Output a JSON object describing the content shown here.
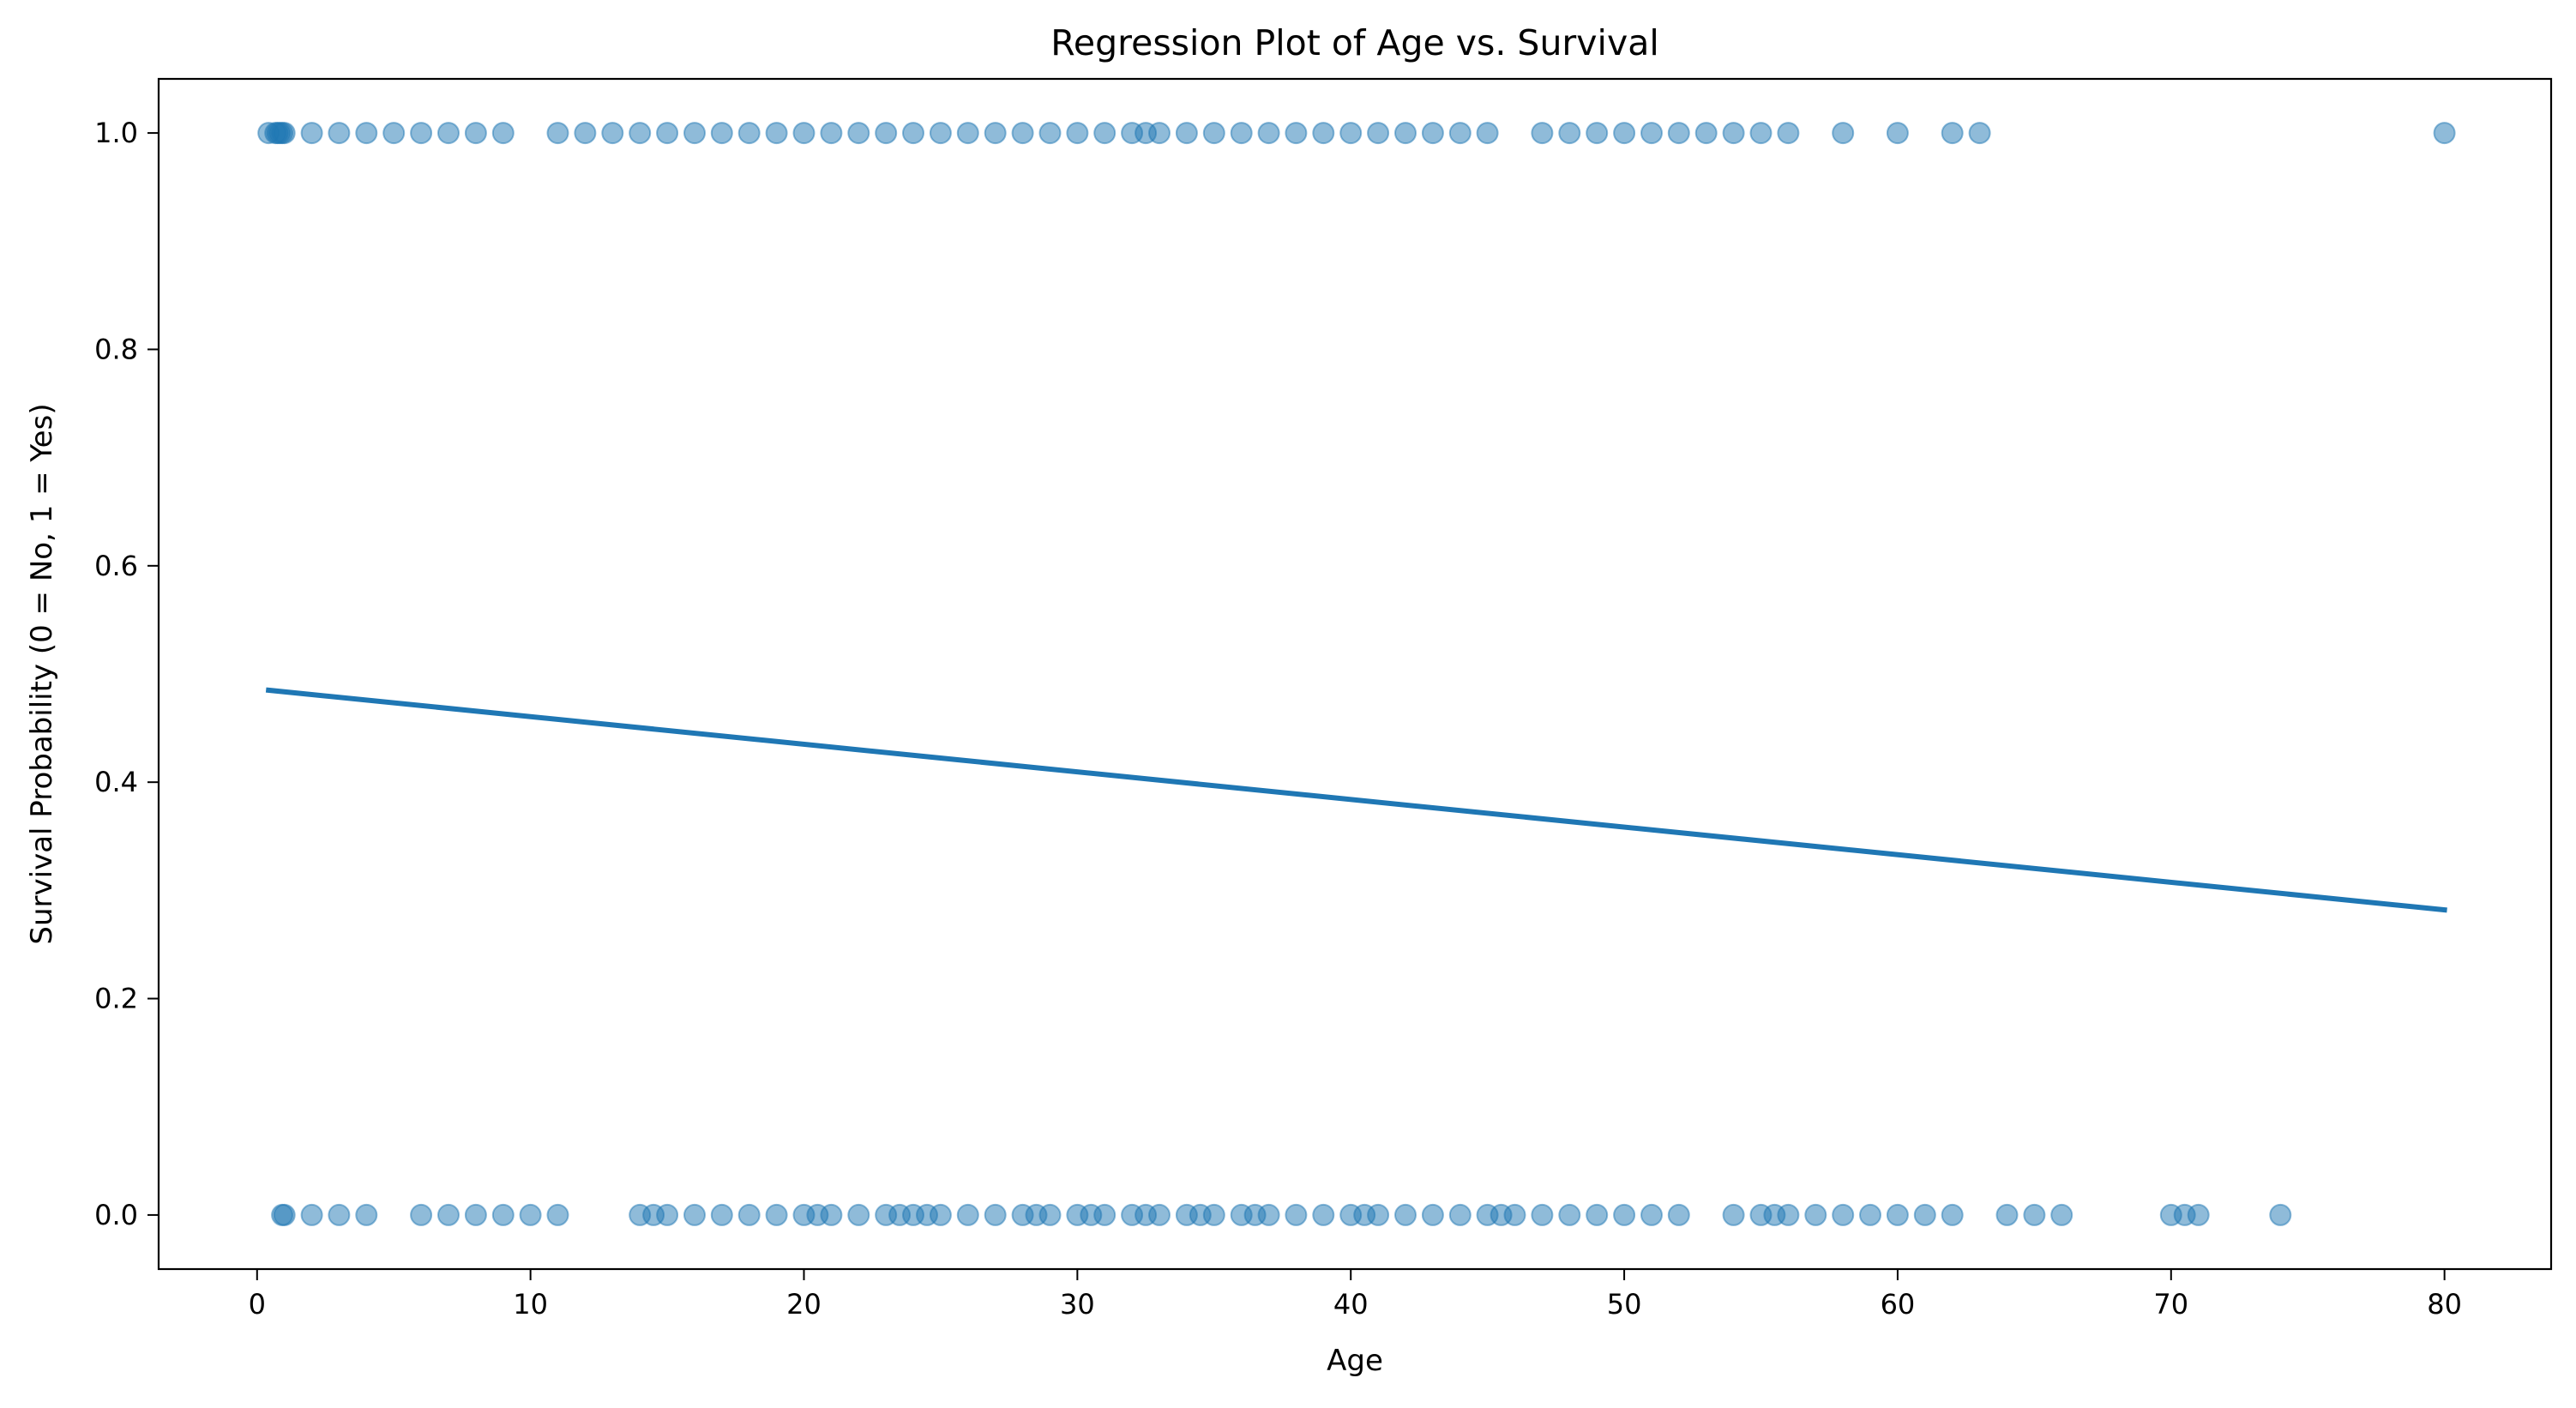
{
  "chart_data": {
    "type": "scatter",
    "title": "Regression Plot of Age vs. Survival",
    "xlabel": "Age",
    "ylabel": "Survival Probability (0 = No, 1 = Yes)",
    "xlim": [
      -3.6,
      83.9
    ],
    "ylim": [
      -0.05,
      1.05
    ],
    "xticks": [
      0,
      10,
      20,
      30,
      40,
      50,
      60,
      70,
      80
    ],
    "xtick_labels": [
      "0",
      "10",
      "20",
      "30",
      "40",
      "50",
      "60",
      "70",
      "80"
    ],
    "yticks": [
      0.0,
      0.2,
      0.4,
      0.6,
      0.8,
      1.0
    ],
    "ytick_labels": [
      "0.0",
      "0.2",
      "0.4",
      "0.6",
      "0.8",
      "1.0"
    ],
    "grid": false,
    "legend": "none",
    "point_color": "#1f77b4",
    "point_alpha": 0.5,
    "series": [
      {
        "values": [
          [
            0.42,
            1
          ],
          [
            0.67,
            1
          ],
          [
            0.75,
            1
          ],
          [
            0.83,
            1
          ],
          [
            0.92,
            1
          ],
          [
            1,
            1
          ],
          [
            2,
            1
          ],
          [
            3,
            1
          ],
          [
            4,
            1
          ],
          [
            5,
            1
          ],
          [
            6,
            1
          ],
          [
            7,
            1
          ],
          [
            8,
            1
          ],
          [
            9,
            1
          ],
          [
            11,
            1
          ],
          [
            12,
            1
          ],
          [
            13,
            1
          ],
          [
            14,
            1
          ],
          [
            15,
            1
          ],
          [
            16,
            1
          ],
          [
            17,
            1
          ],
          [
            18,
            1
          ],
          [
            19,
            1
          ],
          [
            20,
            1
          ],
          [
            21,
            1
          ],
          [
            22,
            1
          ],
          [
            23,
            1
          ],
          [
            24,
            1
          ],
          [
            25,
            1
          ],
          [
            26,
            1
          ],
          [
            27,
            1
          ],
          [
            28,
            1
          ],
          [
            29,
            1
          ],
          [
            30,
            1
          ],
          [
            31,
            1
          ],
          [
            32,
            1
          ],
          [
            32.5,
            1
          ],
          [
            33,
            1
          ],
          [
            34,
            1
          ],
          [
            35,
            1
          ],
          [
            36,
            1
          ],
          [
            37,
            1
          ],
          [
            38,
            1
          ],
          [
            39,
            1
          ],
          [
            40,
            1
          ],
          [
            41,
            1
          ],
          [
            42,
            1
          ],
          [
            43,
            1
          ],
          [
            44,
            1
          ],
          [
            45,
            1
          ],
          [
            47,
            1
          ],
          [
            48,
            1
          ],
          [
            49,
            1
          ],
          [
            50,
            1
          ],
          [
            51,
            1
          ],
          [
            52,
            1
          ],
          [
            53,
            1
          ],
          [
            54,
            1
          ],
          [
            55,
            1
          ],
          [
            56,
            1
          ],
          [
            58,
            1
          ],
          [
            60,
            1
          ],
          [
            62,
            1
          ],
          [
            63,
            1
          ],
          [
            80,
            1
          ],
          [
            0.92,
            0
          ],
          [
            1,
            0
          ],
          [
            2,
            0
          ],
          [
            3,
            0
          ],
          [
            4,
            0
          ],
          [
            6,
            0
          ],
          [
            7,
            0
          ],
          [
            8,
            0
          ],
          [
            9,
            0
          ],
          [
            10,
            0
          ],
          [
            11,
            0
          ],
          [
            14,
            0
          ],
          [
            14.5,
            0
          ],
          [
            15,
            0
          ],
          [
            16,
            0
          ],
          [
            17,
            0
          ],
          [
            18,
            0
          ],
          [
            19,
            0
          ],
          [
            20,
            0
          ],
          [
            20.5,
            0
          ],
          [
            21,
            0
          ],
          [
            22,
            0
          ],
          [
            23,
            0
          ],
          [
            23.5,
            0
          ],
          [
            24,
            0
          ],
          [
            24.5,
            0
          ],
          [
            25,
            0
          ],
          [
            26,
            0
          ],
          [
            27,
            0
          ],
          [
            28,
            0
          ],
          [
            28.5,
            0
          ],
          [
            29,
            0
          ],
          [
            30,
            0
          ],
          [
            30.5,
            0
          ],
          [
            31,
            0
          ],
          [
            32,
            0
          ],
          [
            32.5,
            0
          ],
          [
            33,
            0
          ],
          [
            34,
            0
          ],
          [
            34.5,
            0
          ],
          [
            35,
            0
          ],
          [
            36,
            0
          ],
          [
            36.5,
            0
          ],
          [
            37,
            0
          ],
          [
            38,
            0
          ],
          [
            39,
            0
          ],
          [
            40,
            0
          ],
          [
            40.5,
            0
          ],
          [
            41,
            0
          ],
          [
            42,
            0
          ],
          [
            43,
            0
          ],
          [
            44,
            0
          ],
          [
            45,
            0
          ],
          [
            45.5,
            0
          ],
          [
            46,
            0
          ],
          [
            47,
            0
          ],
          [
            48,
            0
          ],
          [
            49,
            0
          ],
          [
            50,
            0
          ],
          [
            51,
            0
          ],
          [
            52,
            0
          ],
          [
            54,
            0
          ],
          [
            55,
            0
          ],
          [
            55.5,
            0
          ],
          [
            56,
            0
          ],
          [
            57,
            0
          ],
          [
            58,
            0
          ],
          [
            59,
            0
          ],
          [
            60,
            0
          ],
          [
            61,
            0
          ],
          [
            62,
            0
          ],
          [
            64,
            0
          ],
          [
            65,
            0
          ],
          [
            66,
            0
          ],
          [
            70,
            0
          ],
          [
            70.5,
            0
          ],
          [
            71,
            0
          ],
          [
            74,
            0
          ]
        ]
      }
    ],
    "regression_line": {
      "type": "line",
      "color": "#1f77b4",
      "x": [
        0.42,
        80
      ],
      "y": [
        0.485,
        0.282
      ]
    }
  }
}
